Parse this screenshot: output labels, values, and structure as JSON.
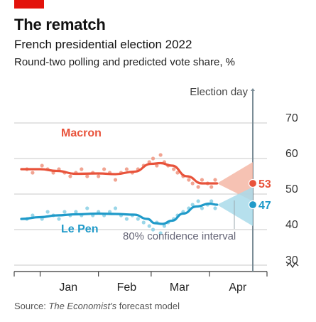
{
  "header": {
    "title": "The rematch",
    "subtitle": "French presidential election 2022",
    "description": "Round-two polling and predicted vote share, %"
  },
  "source": {
    "prefix": "Source: ",
    "publication": "The Economist's",
    "suffix": " forecast model"
  },
  "colors": {
    "accent_tag": "#e3120b",
    "macron": "#e8533b",
    "macron_dots": "#f09a86",
    "lepen": "#1f9ac9",
    "lepen_dots": "#8fd1e6",
    "macron_band": "#f4b7a6",
    "lepen_band": "#a9daea",
    "grid": "#c8c8c8",
    "axis": "#333333",
    "election_line": "#7a8c96"
  },
  "chart_data": {
    "type": "line",
    "x_unit": "month of 2022",
    "xlim": [
      "Dec 22",
      "Apr 24"
    ],
    "ylim": [
      25,
      75
    ],
    "y_ticks": [
      30,
      40,
      50,
      60,
      70
    ],
    "y_axis_side": "right",
    "y_axis_break": true,
    "x_tick_labels": [
      "Jan",
      "Feb",
      "Mar",
      "Apr"
    ],
    "grid": "horizontal",
    "series": [
      {
        "name": "Macron",
        "trend": [
          [
            "Dec 22",
            57.0
          ],
          [
            "Jan 1",
            57.0
          ],
          [
            "Jan 10",
            56.5
          ],
          [
            "Jan 20",
            55.7
          ],
          [
            "Feb 1",
            55.8
          ],
          [
            "Feb 10",
            55.6
          ],
          [
            "Feb 20",
            56.3
          ],
          [
            "Mar 1",
            58.5
          ],
          [
            "Mar 6",
            58.7
          ],
          [
            "Mar 12",
            58.0
          ],
          [
            "Mar 20",
            55.0
          ],
          [
            "Mar 28",
            53.0
          ],
          [
            "Apr 5",
            53.0
          ]
        ],
        "polls": [
          [
            "Dec 25",
            57
          ],
          [
            "Dec 28",
            56
          ],
          [
            "Jan 2",
            58
          ],
          [
            "Jan 5",
            57
          ],
          [
            "Jan 8",
            56
          ],
          [
            "Jan 11",
            57
          ],
          [
            "Jan 14",
            56
          ],
          [
            "Jan 17",
            55
          ],
          [
            "Jan 20",
            56
          ],
          [
            "Jan 23",
            57
          ],
          [
            "Jan 26",
            55
          ],
          [
            "Jan 29",
            56
          ],
          [
            "Feb 1",
            55
          ],
          [
            "Feb 4",
            57
          ],
          [
            "Feb 7",
            56
          ],
          [
            "Feb 10",
            54
          ],
          [
            "Feb 13",
            56
          ],
          [
            "Feb 16",
            57
          ],
          [
            "Feb 19",
            56
          ],
          [
            "Feb 22",
            57
          ],
          [
            "Feb 25",
            58
          ],
          [
            "Feb 28",
            59
          ],
          [
            "Mar 2",
            60
          ],
          [
            "Mar 4",
            58
          ],
          [
            "Mar 6",
            61
          ],
          [
            "Mar 8",
            59
          ],
          [
            "Mar 10",
            58
          ],
          [
            "Mar 13",
            57
          ],
          [
            "Mar 15",
            56
          ],
          [
            "Mar 18",
            55
          ],
          [
            "Mar 21",
            54
          ],
          [
            "Mar 23",
            53
          ],
          [
            "Mar 26",
            52
          ],
          [
            "Mar 28",
            54
          ],
          [
            "Mar 31",
            53
          ],
          [
            "Apr 2",
            52
          ],
          [
            "Apr 4",
            54
          ]
        ],
        "predicted_value": 53,
        "label_value": "53",
        "confidence_80": {
          "at": "Apr 24",
          "low": 48,
          "high": 59
        }
      },
      {
        "name": "Le Pen",
        "trend": [
          [
            "Dec 22",
            43.0
          ],
          [
            "Jan 1",
            43.5
          ],
          [
            "Jan 10",
            44.0
          ],
          [
            "Jan 20",
            44.3
          ],
          [
            "Feb 1",
            44.5
          ],
          [
            "Feb 10",
            44.4
          ],
          [
            "Feb 20",
            44.2
          ],
          [
            "Feb 27",
            43.0
          ],
          [
            "Mar 3",
            41.8
          ],
          [
            "Mar 7",
            41.6
          ],
          [
            "Mar 12",
            42.5
          ],
          [
            "Mar 18",
            44.5
          ],
          [
            "Mar 25",
            46.5
          ],
          [
            "Apr 1",
            47.3
          ],
          [
            "Apr 5",
            47.0
          ]
        ],
        "polls": [
          [
            "Dec 25",
            43
          ],
          [
            "Dec 28",
            44
          ],
          [
            "Jan 2",
            43
          ],
          [
            "Jan 5",
            45
          ],
          [
            "Jan 8",
            44
          ],
          [
            "Jan 11",
            43
          ],
          [
            "Jan 14",
            45
          ],
          [
            "Jan 17",
            44
          ],
          [
            "Jan 20",
            45
          ],
          [
            "Jan 23",
            44
          ],
          [
            "Jan 26",
            46
          ],
          [
            "Jan 29",
            44
          ],
          [
            "Feb 1",
            45
          ],
          [
            "Feb 4",
            44
          ],
          [
            "Feb 7",
            45
          ],
          [
            "Feb 10",
            46
          ],
          [
            "Feb 13",
            44
          ],
          [
            "Feb 16",
            43
          ],
          [
            "Feb 19",
            44
          ],
          [
            "Feb 22",
            43
          ],
          [
            "Feb 25",
            42
          ],
          [
            "Feb 28",
            41
          ],
          [
            "Mar 2",
            40
          ],
          [
            "Mar 4",
            42
          ],
          [
            "Mar 6",
            39
          ],
          [
            "Mar 8",
            41
          ],
          [
            "Mar 10",
            42
          ],
          [
            "Mar 13",
            43
          ],
          [
            "Mar 15",
            44
          ],
          [
            "Mar 18",
            45
          ],
          [
            "Mar 21",
            46
          ],
          [
            "Mar 23",
            47
          ],
          [
            "Mar 26",
            48
          ],
          [
            "Mar 28",
            46
          ],
          [
            "Mar 31",
            47
          ],
          [
            "Apr 2",
            48
          ],
          [
            "Apr 4",
            46
          ]
        ],
        "predicted_value": 47,
        "label_value": "47",
        "confidence_80": {
          "at": "Apr 24",
          "low": 41,
          "high": 52
        }
      }
    ],
    "annotations": {
      "election_day": {
        "date": "Apr 24",
        "label": "Election day"
      },
      "confidence_interval_label": "80% confidence interval"
    }
  }
}
